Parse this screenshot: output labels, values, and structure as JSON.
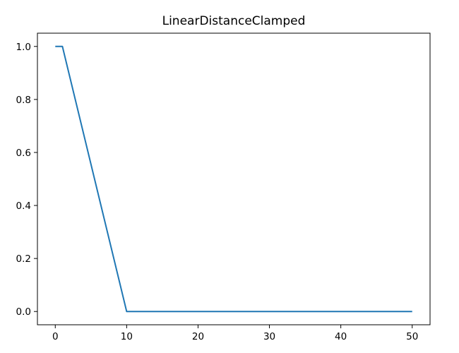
{
  "chart_data": {
    "type": "line",
    "title": "LinearDistanceClamped",
    "xlabel": "",
    "ylabel": "",
    "xlim": [
      -2.5,
      52.5
    ],
    "ylim": [
      -0.05,
      1.05
    ],
    "grid": false,
    "x_ticks": [
      0,
      10,
      20,
      30,
      40,
      50
    ],
    "x_tick_labels": [
      "0",
      "10",
      "20",
      "30",
      "40",
      "50"
    ],
    "y_ticks": [
      0.0,
      0.2,
      0.4,
      0.6,
      0.8,
      1.0
    ],
    "y_tick_labels": [
      "0.0",
      "0.2",
      "0.4",
      "0.6",
      "0.8",
      "1.0"
    ],
    "series": [
      {
        "x": [
          0,
          1,
          10,
          50
        ],
        "y": [
          1.0,
          1.0,
          0.0,
          0.0
        ],
        "color": "#1f77b4"
      }
    ]
  }
}
